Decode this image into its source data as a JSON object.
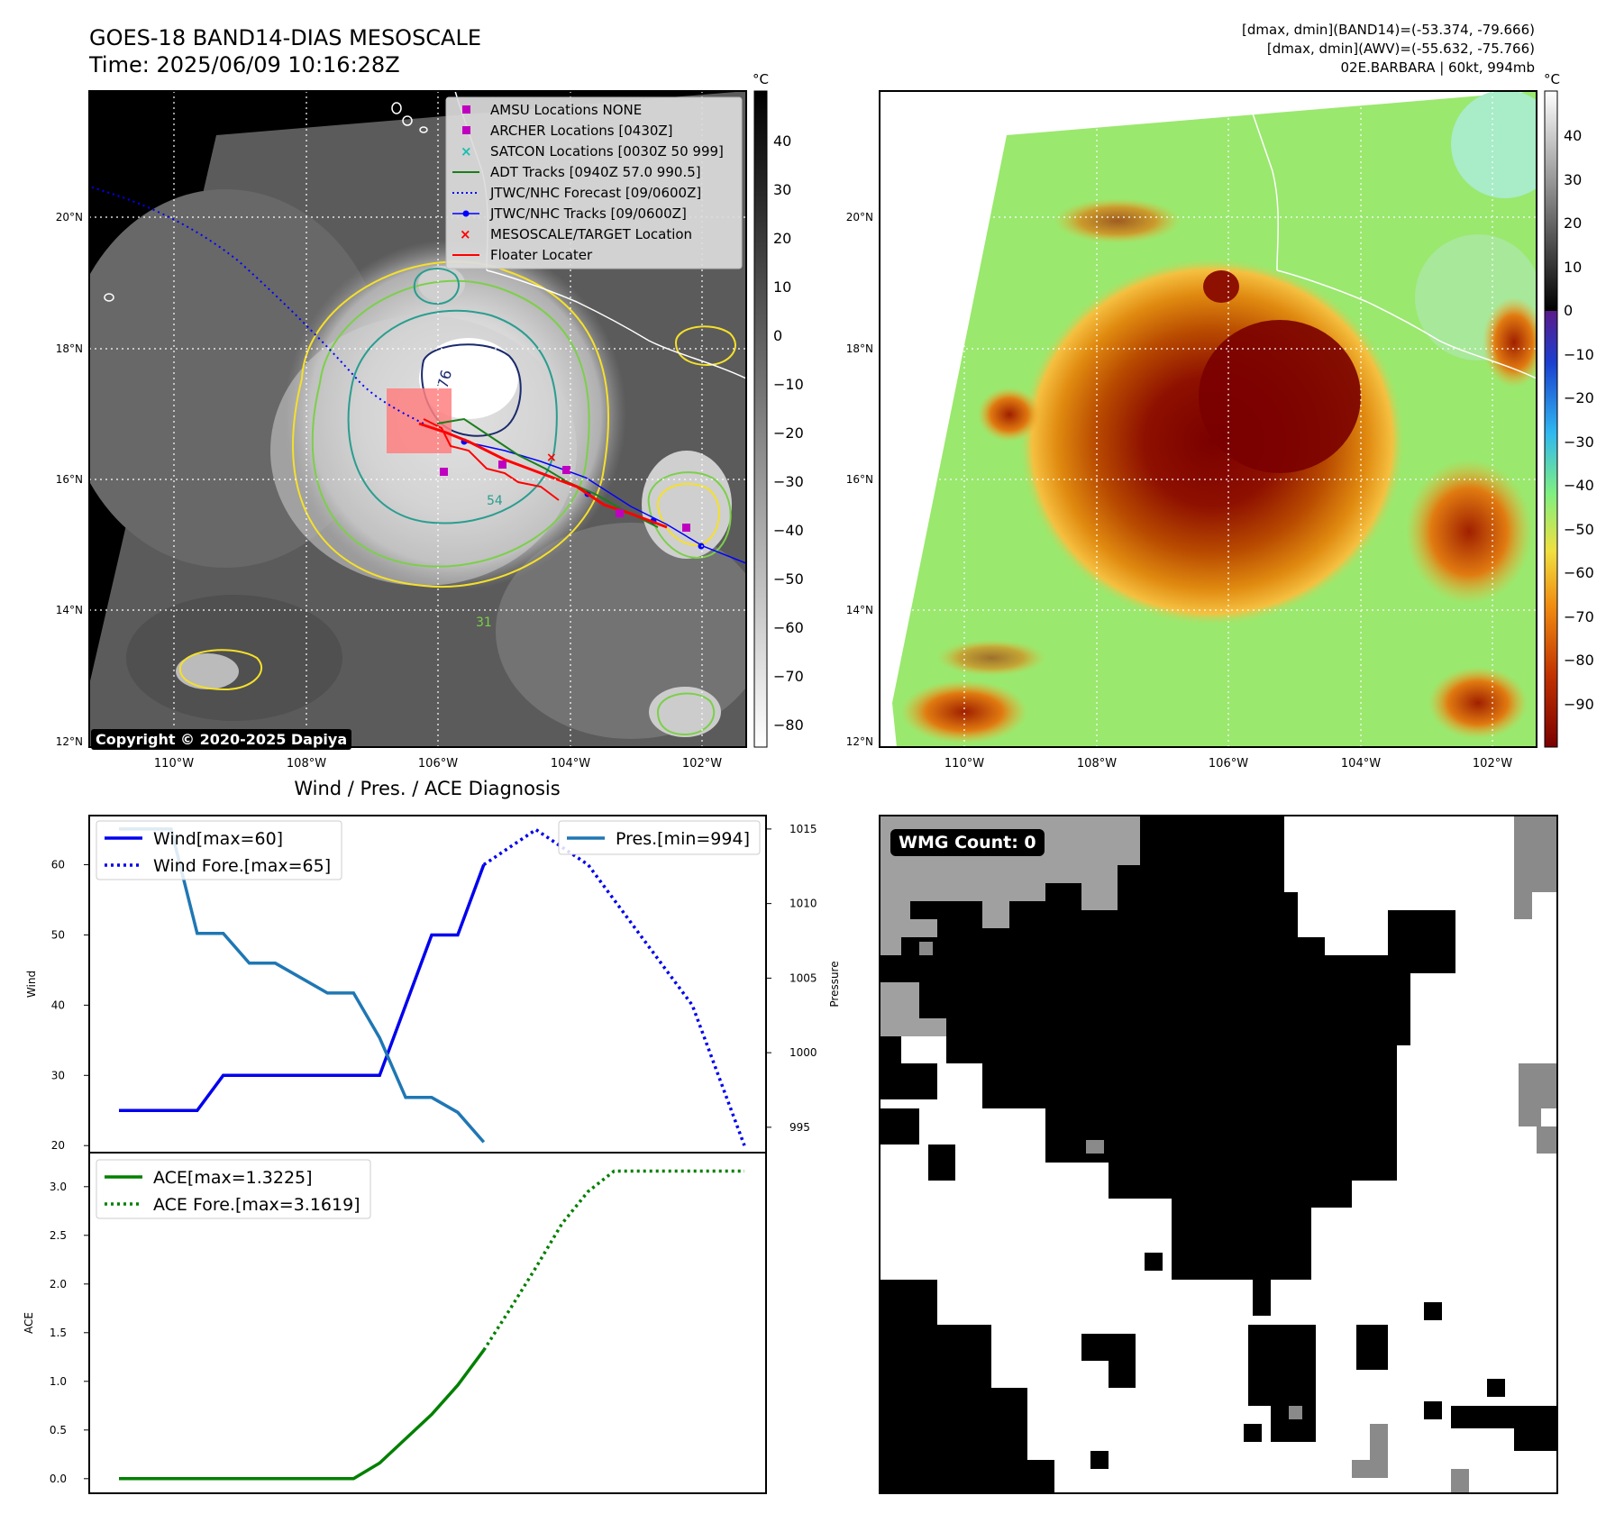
{
  "header": {
    "title_line1": "GOES-18 BAND14-DIAS MESOSCALE",
    "title_line2": "Time: 2025/06/09 10:16:28Z",
    "info_line1": "[dmax, dmin](BAND14)=(-53.374, -79.666)",
    "info_line2": "[dmax, dmin](AWV)=(-55.632, -75.766)",
    "info_line3": "02E.BARBARA | 60kt, 994mb"
  },
  "map": {
    "lat_ticks": [
      "20°N",
      "18°N",
      "16°N",
      "14°N",
      "12°N"
    ],
    "lon_ticks": [
      "110°W",
      "108°W",
      "106°W",
      "104°W",
      "102°W"
    ],
    "copyright": "Copyright © 2020-2025 Dapiya",
    "contour_labels": [
      "76",
      "54",
      "31"
    ],
    "colors": {
      "land_outline": "#ffffff",
      "contour_cold": "#1a2a6c",
      "contour_mid": "#2a9d8f",
      "contour_warm": "#7ccf4a",
      "contour_edge": "#f5e02a"
    }
  },
  "legend": {
    "items": [
      {
        "label": "AMSU Locations NONE",
        "kind": "square",
        "color": "#c000c0"
      },
      {
        "label": "ARCHER Locations [0430Z]",
        "kind": "square",
        "color": "#c000c0"
      },
      {
        "label": "SATCON Locations [0030Z 50 999]",
        "kind": "x",
        "color": "#17bfb0"
      },
      {
        "label": "ADT Tracks [0940Z 57.0 990.5]",
        "kind": "line",
        "color": "#1a7f1a"
      },
      {
        "label": "JTWC/NHC Forecast [09/0600Z]",
        "kind": "dotted",
        "color": "#0000ff"
      },
      {
        "label": "JTWC/NHC Tracks [09/0600Z]",
        "kind": "line-dot",
        "color": "#0000ff"
      },
      {
        "label": "MESOSCALE/TARGET Location",
        "kind": "x",
        "color": "#ff0000"
      },
      {
        "label": "Floater Locater",
        "kind": "line",
        "color": "#ff0000"
      }
    ]
  },
  "colorbars": {
    "unit": "°C",
    "ir_ticks": [
      "40",
      "30",
      "20",
      "10",
      "0",
      "−10",
      "−20",
      "−30",
      "−40",
      "−50",
      "−60",
      "−70",
      "−80"
    ],
    "awv_ticks": [
      "40",
      "30",
      "20",
      "10",
      "0",
      "−10",
      "−20",
      "−30",
      "−40",
      "−50",
      "−60",
      "−70",
      "−80",
      "−90"
    ]
  },
  "wmg": {
    "label": "WMG Count: 0"
  },
  "chart_data": [
    {
      "type": "line",
      "title": "Wind / Pres. / ACE Diagnosis",
      "xlabel": "",
      "ylabel": "Wind",
      "ylabel_right": "Pressure",
      "ylim": [
        19,
        67
      ],
      "ylim_right": [
        993.3,
        1015.9
      ],
      "yticks": [
        20,
        30,
        40,
        50,
        60
      ],
      "yticks_right": [
        995,
        1000,
        1005,
        1010,
        1015
      ],
      "x": [
        0,
        1,
        2,
        3,
        4,
        5,
        6,
        7,
        8,
        9,
        10,
        11,
        12,
        13,
        14,
        15,
        16,
        17,
        18,
        19,
        20,
        21,
        22,
        23,
        24
      ],
      "series": [
        {
          "name": "Wind[max=60]",
          "axis": "left",
          "style": "solid",
          "color": "#0000ee",
          "x": [
            0,
            3,
            4,
            9,
            10,
            11,
            12,
            13,
            14
          ],
          "values": [
            25,
            25,
            30,
            30,
            30,
            40,
            50,
            50,
            60
          ]
        },
        {
          "name": "Wind Fore.[max=65]",
          "axis": "left",
          "style": "dotted",
          "color": "#0000ee",
          "x": [
            14,
            16,
            18,
            20,
            22,
            23,
            24
          ],
          "values": [
            60,
            65,
            60,
            50,
            40,
            30,
            20
          ]
        },
        {
          "name": "Pres.[min=994]",
          "axis": "right",
          "style": "solid",
          "color": "#1f77b4",
          "x": [
            0,
            2,
            3,
            4,
            5,
            6,
            8,
            9,
            10,
            11,
            12,
            13,
            14
          ],
          "values": [
            1015,
            1015,
            1008,
            1008,
            1006,
            1006,
            1004,
            1004,
            1001,
            997,
            997,
            996,
            994
          ]
        }
      ]
    },
    {
      "type": "line",
      "xlabel": "",
      "ylabel": "ACE",
      "ylim": [
        -0.15,
        3.35
      ],
      "yticks": [
        0.0,
        0.5,
        1.0,
        1.5,
        2.0,
        2.5,
        3.0
      ],
      "x": [
        0,
        1,
        2,
        3,
        4,
        5,
        6,
        7,
        8,
        9,
        10,
        11,
        12,
        13,
        14,
        15,
        16,
        17,
        18,
        19,
        20,
        21,
        22,
        23,
        24
      ],
      "series": [
        {
          "name": "ACE[max=1.3225]",
          "style": "solid",
          "color": "#008000",
          "x": [
            0,
            9,
            10,
            11,
            12,
            13,
            14
          ],
          "values": [
            0,
            0,
            0.16,
            0.41,
            0.66,
            0.96,
            1.32
          ]
        },
        {
          "name": "ACE Fore.[max=3.1619]",
          "style": "dotted",
          "color": "#008000",
          "x": [
            14,
            15,
            16,
            17,
            18,
            19,
            20,
            21,
            22,
            23,
            24
          ],
          "values": [
            1.32,
            1.74,
            2.17,
            2.62,
            2.95,
            3.16,
            3.16,
            3.16,
            3.16,
            3.16,
            3.16
          ]
        }
      ]
    }
  ]
}
